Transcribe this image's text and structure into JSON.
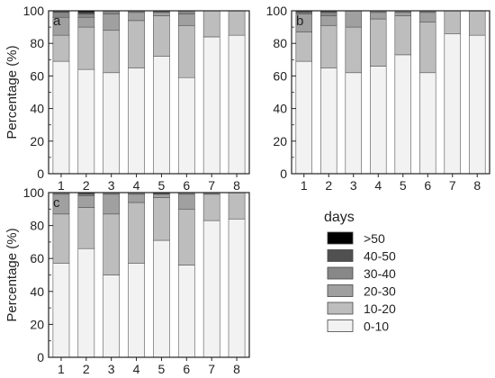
{
  "chart_data": [
    {
      "type": "bar",
      "stacked": true,
      "panel_label": "a",
      "ylabel": "Percentage (%)",
      "xlabel": "",
      "ylim": [
        0,
        100
      ],
      "yticks": [
        0,
        20,
        40,
        60,
        80,
        100
      ],
      "categories": [
        "1",
        "2",
        "3",
        "4",
        "5",
        "6",
        "7",
        "8"
      ],
      "series": [
        {
          "name": "0-10",
          "values": [
            69,
            64,
            62,
            65,
            72,
            59,
            84,
            85
          ]
        },
        {
          "name": "10-20",
          "values": [
            16,
            26,
            26,
            29,
            25,
            32,
            16,
            15
          ]
        },
        {
          "name": "20-30",
          "values": [
            11,
            6,
            10,
            5,
            2,
            7,
            0,
            0
          ]
        },
        {
          "name": "30-40",
          "values": [
            3,
            2,
            2,
            1,
            0.5,
            2,
            0,
            0
          ]
        },
        {
          "name": "40-50",
          "values": [
            1,
            1,
            0,
            0,
            0.5,
            0,
            0,
            0
          ]
        },
        {
          "name": ">50",
          "values": [
            0,
            1,
            0,
            0,
            0,
            0,
            0,
            0
          ]
        }
      ]
    },
    {
      "type": "bar",
      "stacked": true,
      "panel_label": "b",
      "ylabel": "",
      "xlabel": "",
      "ylim": [
        0,
        100
      ],
      "yticks": [
        0,
        20,
        40,
        60,
        80,
        100
      ],
      "categories": [
        "1",
        "2",
        "3",
        "4",
        "5",
        "6",
        "7",
        "8"
      ],
      "series": [
        {
          "name": "0-10",
          "values": [
            69,
            65,
            62,
            66,
            73,
            62,
            86,
            85
          ]
        },
        {
          "name": "10-20",
          "values": [
            18,
            26,
            28,
            29,
            24,
            31,
            14,
            15
          ]
        },
        {
          "name": "20-30",
          "values": [
            11,
            6,
            10,
            4,
            2,
            6,
            0,
            0
          ]
        },
        {
          "name": "30-40",
          "values": [
            1,
            2,
            0,
            1,
            1,
            1,
            0,
            0
          ]
        },
        {
          "name": "40-50",
          "values": [
            1,
            1,
            0,
            0,
            0,
            0,
            0,
            0
          ]
        },
        {
          "name": ">50",
          "values": [
            0,
            0,
            0,
            0,
            0,
            0,
            0,
            0
          ]
        }
      ]
    },
    {
      "type": "bar",
      "stacked": true,
      "panel_label": "c",
      "ylabel": "Percentage (%)",
      "xlabel": "",
      "ylim": [
        0,
        100
      ],
      "yticks": [
        0,
        20,
        40,
        60,
        80,
        100
      ],
      "categories": [
        "1",
        "2",
        "3",
        "4",
        "5",
        "6",
        "7",
        "8"
      ],
      "series": [
        {
          "name": "0-10",
          "values": [
            57,
            66,
            50,
            57,
            71,
            56,
            83,
            84
          ]
        },
        {
          "name": "10-20",
          "values": [
            30,
            25,
            37,
            37,
            26,
            34,
            16,
            16
          ]
        },
        {
          "name": "20-30",
          "values": [
            12,
            7,
            12,
            5,
            2,
            9,
            0,
            0
          ]
        },
        {
          "name": "30-40",
          "values": [
            1,
            1,
            1,
            1,
            0,
            1,
            1,
            0
          ]
        },
        {
          "name": "40-50",
          "values": [
            0,
            0.5,
            0,
            0,
            0.5,
            0,
            0,
            0
          ]
        },
        {
          "name": ">50",
          "values": [
            0,
            0.5,
            0,
            0,
            0.5,
            0,
            0,
            0
          ]
        }
      ]
    }
  ],
  "legend": {
    "title": "days",
    "entries": [
      {
        "label": ">50",
        "color": "#000000"
      },
      {
        "label": "40-50",
        "color": "#505050"
      },
      {
        "label": "30-40",
        "color": "#888888"
      },
      {
        "label": "20-30",
        "color": "#a0a0a0"
      },
      {
        "label": "10-20",
        "color": "#bdbdbd"
      },
      {
        "label": "0-10",
        "color": "#f2f2f2"
      }
    ]
  }
}
